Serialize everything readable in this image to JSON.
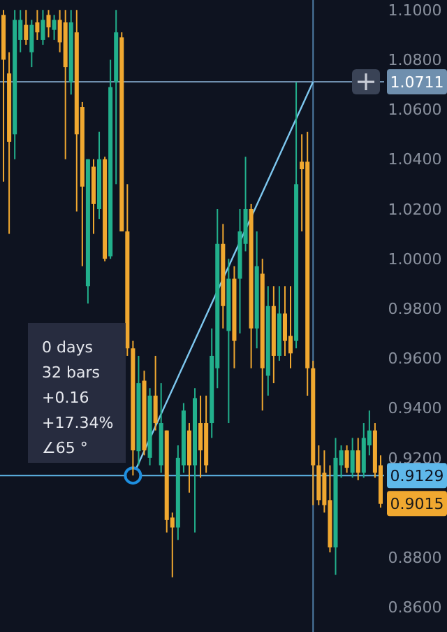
{
  "chart_data": {
    "type": "candlestick",
    "categories": [
      null,
      null,
      null,
      null,
      null,
      null,
      null,
      null,
      null,
      null,
      null,
      null,
      null,
      null,
      null,
      null,
      null,
      null,
      null,
      null,
      null,
      null,
      null,
      null,
      null,
      null,
      null,
      null,
      null,
      null,
      null,
      null,
      null,
      null,
      null,
      null,
      null,
      null,
      null,
      null,
      null,
      null,
      null,
      null,
      null,
      null,
      null,
      null,
      null,
      null,
      null,
      null,
      null,
      null,
      null,
      null,
      null,
      null,
      null,
      null,
      null,
      null,
      null,
      null,
      null,
      null,
      null,
      null
    ],
    "ohlc": [
      [
        1.098,
        1.1,
        1.031,
        1.08
      ],
      [
        1.0745,
        1.083,
        1.01,
        1.047
      ],
      [
        1.05,
        1.1,
        1.04,
        1.096
      ],
      [
        1.088,
        1.1,
        1.083,
        1.096
      ],
      [
        1.094,
        1.1,
        1.086,
        1.088
      ],
      [
        1.083,
        1.096,
        1.077,
        1.094
      ],
      [
        1.095,
        1.1,
        1.088,
        1.091
      ],
      [
        1.088,
        1.1,
        1.086,
        1.096
      ],
      [
        1.098,
        1.1,
        1.089,
        1.093
      ],
      [
        1.092,
        1.098,
        1.088,
        1.096
      ],
      [
        1.096,
        1.1,
        1.083,
        1.087
      ],
      [
        1.095,
        1.1,
        1.04,
        1.077
      ],
      [
        1.071,
        1.1,
        1.066,
        1.095
      ],
      [
        1.091,
        1.1,
        1.019,
        1.05
      ],
      [
        1.061,
        1.063,
        0.997,
        1.029
      ],
      [
        0.989,
        1.04,
        0.982,
        1.04
      ],
      [
        1.037,
        1.04,
        1.01,
        1.022
      ],
      [
        1.02,
        1.051,
        1.016,
        1.04
      ],
      [
        1.04,
        1.041,
        0.999,
        1.0
      ],
      [
        1.001,
        1.08,
        1.0,
        1.069
      ],
      [
        1.071,
        1.1,
        1.03,
        1.091
      ],
      [
        1.089,
        1.091,
        1.011,
        1.011
      ],
      [
        1.011,
        1.03,
        0.961,
        0.964
      ],
      [
        0.964,
        0.967,
        0.9129,
        0.923
      ],
      [
        0.9227,
        0.961,
        0.917,
        0.95
      ],
      [
        0.951,
        0.955,
        0.921,
        0.923
      ],
      [
        0.92,
        0.948,
        0.917,
        0.945
      ],
      [
        0.945,
        0.961,
        0.931,
        0.934
      ],
      [
        0.917,
        0.95,
        0.914,
        0.934
      ],
      [
        0.931,
        0.931,
        0.89,
        0.895
      ],
      [
        0.896,
        0.898,
        0.872,
        0.892
      ],
      [
        0.892,
        0.925,
        0.887,
        0.92
      ],
      [
        0.917,
        0.942,
        0.914,
        0.939
      ],
      [
        0.931,
        0.934,
        0.906,
        0.917
      ],
      [
        0.917,
        0.948,
        0.89,
        0.944
      ],
      [
        0.934,
        0.945,
        0.912,
        0.923
      ],
      [
        0.934,
        0.945,
        0.914,
        0.917
      ],
      [
        0.934,
        0.972,
        0.928,
        0.961
      ],
      [
        0.956,
        1.02,
        0.948,
        1.006
      ],
      [
        1.006,
        1.014,
        0.972,
        0.981
      ],
      [
        0.971,
        1.0,
        0.934,
        0.992
      ],
      [
        0.992,
        0.997,
        0.956,
        0.967
      ],
      [
        0.992,
        1.02,
        0.97,
        1.011
      ],
      [
        1.006,
        1.041,
        1.003,
        1.02
      ],
      [
        1.02,
        1.022,
        0.956,
        0.972
      ],
      [
        0.972,
        1.011,
        0.964,
        0.997
      ],
      [
        0.994,
        1.0,
        0.939,
        0.956
      ],
      [
        0.953,
        0.989,
        0.945,
        0.981
      ],
      [
        0.981,
        0.989,
        0.95,
        0.961
      ],
      [
        0.961,
        0.989,
        0.959,
        0.978
      ],
      [
        0.978,
        0.989,
        0.961,
        0.967
      ],
      [
        0.969,
        0.989,
        0.956,
        0.962
      ],
      [
        0.967,
        1.071,
        0.964,
        1.03
      ],
      [
        1.039,
        1.05,
        1.011,
        1.036
      ],
      [
        1.039,
        1.051,
        0.945,
        0.956
      ],
      [
        0.956,
        0.959,
        0.901,
        0.917
      ],
      [
        0.917,
        0.925,
        0.901,
        0.903
      ],
      [
        0.914,
        0.923,
        0.898,
        0.901
      ],
      [
        0.903,
        0.917,
        0.882,
        0.884
      ],
      [
        0.884,
        0.928,
        0.873,
        0.92
      ],
      [
        0.917,
        0.925,
        0.912,
        0.923
      ],
      [
        0.923,
        0.925,
        0.914,
        0.916
      ],
      [
        0.914,
        0.928,
        0.912,
        0.923
      ],
      [
        0.923,
        0.928,
        0.911,
        0.914
      ],
      [
        0.914,
        0.934,
        0.912,
        0.928
      ],
      [
        0.925,
        0.939,
        0.921,
        0.931
      ],
      [
        0.931,
        0.934,
        0.912,
        0.914
      ],
      [
        0.917,
        0.921,
        0.9,
        0.9015
      ]
    ],
    "colors": [
      "#f0a830",
      "#f0a830",
      "#22b08c",
      "#22b08c",
      "#f0a830",
      "#22b08c",
      "#f0a830",
      "#22b08c",
      "#f0a830",
      "#22b08c",
      "#f0a830",
      "#f0a830",
      "#22b08c",
      "#f0a830",
      "#f0a830",
      "#22b08c",
      "#f0a830",
      "#22b08c",
      "#f0a830",
      "#22b08c",
      "#22b08c",
      "#f0a830",
      "#f0a830",
      "#f0a830",
      "#22b08c",
      "#f0a830",
      "#22b08c",
      "#f0a830",
      "#22b08c",
      "#f0a830",
      "#f0a830",
      "#22b08c",
      "#22b08c",
      "#f0a830",
      "#22b08c",
      "#f0a830",
      "#f0a830",
      "#22b08c",
      "#22b08c",
      "#f0a830",
      "#22b08c",
      "#f0a830",
      "#22b08c",
      "#22b08c",
      "#f0a830",
      "#22b08c",
      "#f0a830",
      "#22b08c",
      "#f0a830",
      "#22b08c",
      "#f0a830",
      "#f0a830",
      "#22b08c",
      "#f0a830",
      "#f0a830",
      "#f0a830",
      "#f0a830",
      "#f0a830",
      "#f0a830",
      "#22b08c",
      "#22b08c",
      "#f0a830",
      "#22b08c",
      "#f0a830",
      "#22b08c",
      "#22b08c",
      "#f0a830",
      "#f0a830"
    ],
    "series": [
      {
        "type": "line",
        "values": [
          null,
          null,
          null,
          null,
          null,
          null,
          null,
          null,
          null,
          null,
          null,
          null,
          null,
          null,
          null,
          null,
          null,
          null,
          null,
          null,
          null,
          null,
          null,
          0.9129,
          null,
          null,
          null,
          null,
          null,
          null,
          null,
          null,
          null,
          null,
          null,
          null,
          null,
          null,
          null,
          null,
          null,
          null,
          null,
          null,
          null,
          null,
          null,
          null,
          null,
          null,
          null,
          null,
          null,
          null,
          null,
          1.0711,
          null,
          null,
          null,
          null,
          null,
          null,
          null,
          null,
          null,
          null,
          null,
          null
        ],
        "color": "#7ec8f0"
      }
    ],
    "ylim": [
      0.85,
      1.104
    ],
    "yticks": [
      {
        "value": 0.86,
        "label": "0.8600"
      },
      {
        "value": 0.88,
        "label": "0.8800"
      },
      {
        "value": 0.92,
        "label": "0.9200"
      },
      {
        "value": 0.94,
        "label": "0.9400"
      },
      {
        "value": 0.96,
        "label": "0.9600"
      },
      {
        "value": 0.98,
        "label": "0.9800"
      },
      {
        "value": 1.0,
        "label": "1.0000"
      },
      {
        "value": 1.02,
        "label": "1.0200"
      },
      {
        "value": 1.04,
        "label": "1.0400"
      },
      {
        "value": 1.06,
        "label": "1.0600"
      },
      {
        "value": 1.08,
        "label": "1.0800"
      },
      {
        "value": 1.1,
        "label": "1.1000"
      }
    ],
    "tick_labels": "y",
    "ref_lines": [
      {
        "axis": "y",
        "value": 0.9129,
        "label": "0.9129",
        "color": "#5fb8ea"
      },
      {
        "axis": "y",
        "value": 1.0711,
        "label": "1.0711",
        "color": "#6f8fae"
      }
    ],
    "annotations": [
      "0 days",
      "32 bars",
      "+0.16",
      "+17.34%",
      "∠65 °",
      "0.9015"
    ]
  }
}
